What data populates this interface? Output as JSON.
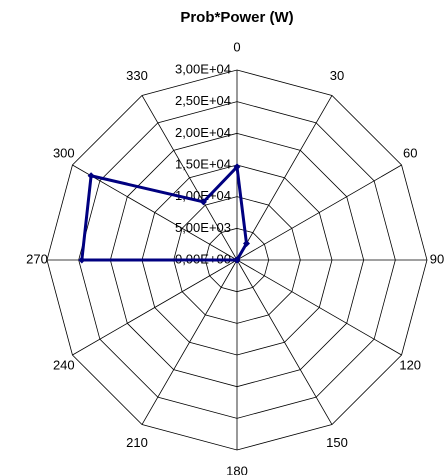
{
  "chart_data": {
    "type": "radar",
    "title": "Prob*Power (W)",
    "categories": [
      "0",
      "30",
      "60",
      "90",
      "120",
      "150",
      "180",
      "210",
      "240",
      "270",
      "300",
      "330"
    ],
    "series": [
      {
        "name": "Prob*Power",
        "color": "#000080",
        "values": [
          14700,
          3000,
          0,
          0,
          0,
          0,
          0,
          0,
          0,
          24500,
          26600,
          10600
        ]
      }
    ],
    "rlim": [
      0,
      30000
    ],
    "rticks": [
      {
        "value": 0,
        "label": "0,00E+00"
      },
      {
        "value": 5000,
        "label": "5,00E+03"
      },
      {
        "value": 10000,
        "label": "1,00E+04"
      },
      {
        "value": 15000,
        "label": "1,50E+04"
      },
      {
        "value": 20000,
        "label": "2,00E+04"
      },
      {
        "value": 25000,
        "label": "2,50E+04"
      },
      {
        "value": 30000,
        "label": "3,00E+04"
      }
    ],
    "grid": true
  }
}
